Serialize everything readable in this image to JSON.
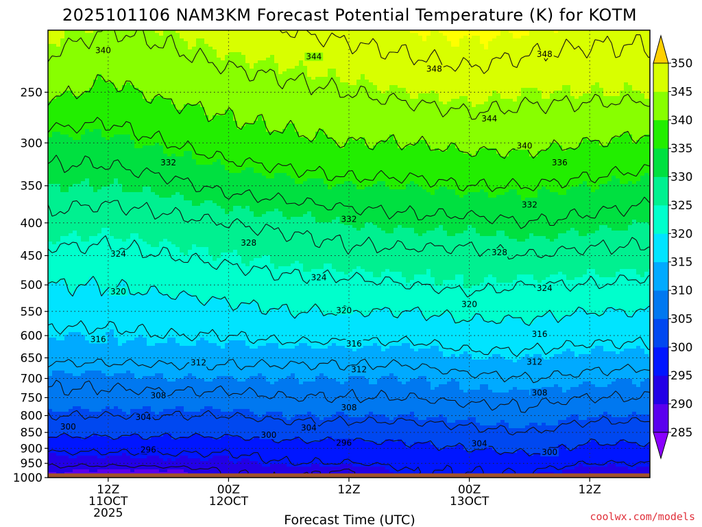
{
  "chart_data": {
    "type": "heatmap",
    "title": "2025101106 NAM3KM Forecast Potential Temperature (K) for KOTM",
    "xlabel": "Forecast Time (UTC)",
    "ylabel": "",
    "y_ticks": [
      "250",
      "300",
      "350",
      "400",
      "450",
      "500",
      "550",
      "600",
      "650",
      "700",
      "750",
      "800",
      "850",
      "900",
      "950",
      "1000"
    ],
    "y_values": [
      250,
      300,
      350,
      400,
      450,
      500,
      550,
      600,
      650,
      700,
      750,
      800,
      850,
      900,
      950,
      1000
    ],
    "ylim": [
      200,
      1000
    ],
    "y_scale": "log-pressure",
    "x_ticks": [
      {
        "hour": 6,
        "line1": "12Z",
        "line2": "11OCT",
        "line3": "2025"
      },
      {
        "hour": 18,
        "line1": "00Z",
        "line2": "12OCT",
        "line3": ""
      },
      {
        "hour": 30,
        "line1": "12Z",
        "line2": "",
        "line3": ""
      },
      {
        "hour": 42,
        "line1": "00Z",
        "line2": "13OCT",
        "line3": ""
      },
      {
        "hour": 54,
        "line1": "12Z",
        "line2": "",
        "line3": ""
      }
    ],
    "xlim": [
      0,
      60
    ],
    "colorbar": {
      "levels": [
        285,
        290,
        295,
        300,
        305,
        310,
        315,
        320,
        325,
        330,
        335,
        340,
        345,
        350
      ],
      "labels": [
        "285",
        "290",
        "295",
        "300",
        "305",
        "310",
        "315",
        "320",
        "325",
        "330",
        "335",
        "340",
        "345",
        "350"
      ],
      "colors": [
        "#8a00ff",
        "#5a00ee",
        "#2200e6",
        "#0016ff",
        "#0048f0",
        "#0078f0",
        "#00aaff",
        "#00e4ff",
        "#00ffcc",
        "#00f090",
        "#00e040",
        "#22ee00",
        "#88ff00",
        "#d8ff00",
        "#ffff00",
        "#ffd000"
      ],
      "extend": "both"
    },
    "potential_temperature_columns": [
      {
        "hour": 0,
        "levels": [
          [
            200,
            346
          ],
          [
            250,
            341
          ],
          [
            300,
            334
          ],
          [
            350,
            330
          ],
          [
            400,
            327
          ],
          [
            450,
            323
          ],
          [
            500,
            320
          ],
          [
            550,
            318
          ],
          [
            600,
            315
          ],
          [
            650,
            313
          ],
          [
            700,
            309
          ],
          [
            750,
            307
          ],
          [
            800,
            304
          ],
          [
            850,
            301
          ],
          [
            900,
            297
          ],
          [
            950,
            293
          ],
          [
            980,
            290
          ]
        ]
      },
      {
        "hour": 6,
        "levels": [
          [
            200,
            344
          ],
          [
            250,
            339
          ],
          [
            300,
            334
          ],
          [
            350,
            330
          ],
          [
            400,
            326
          ],
          [
            450,
            323
          ],
          [
            500,
            320
          ],
          [
            550,
            318
          ],
          [
            600,
            315
          ],
          [
            650,
            313
          ],
          [
            700,
            309
          ],
          [
            750,
            307
          ],
          [
            800,
            304
          ],
          [
            850,
            301
          ],
          [
            900,
            297
          ],
          [
            950,
            293
          ],
          [
            980,
            289
          ]
        ]
      },
      {
        "hour": 12,
        "levels": [
          [
            200,
            345
          ],
          [
            250,
            341
          ],
          [
            300,
            336
          ],
          [
            350,
            331
          ],
          [
            400,
            327
          ],
          [
            450,
            324
          ],
          [
            500,
            321
          ],
          [
            550,
            318
          ],
          [
            600,
            316
          ],
          [
            650,
            313
          ],
          [
            700,
            310
          ],
          [
            750,
            307
          ],
          [
            800,
            304
          ],
          [
            850,
            301
          ],
          [
            900,
            297
          ],
          [
            950,
            294
          ],
          [
            980,
            289
          ]
        ]
      },
      {
        "hour": 18,
        "levels": [
          [
            200,
            347
          ],
          [
            250,
            342
          ],
          [
            300,
            338
          ],
          [
            350,
            333
          ],
          [
            400,
            328
          ],
          [
            450,
            325
          ],
          [
            500,
            322
          ],
          [
            550,
            319
          ],
          [
            600,
            316
          ],
          [
            650,
            313
          ],
          [
            700,
            310
          ],
          [
            750,
            307
          ],
          [
            800,
            304
          ],
          [
            850,
            301
          ],
          [
            900,
            297
          ],
          [
            950,
            294
          ],
          [
            980,
            292
          ]
        ]
      },
      {
        "hour": 24,
        "levels": [
          [
            200,
            348
          ],
          [
            250,
            343
          ],
          [
            300,
            339
          ],
          [
            350,
            334
          ],
          [
            400,
            329
          ],
          [
            450,
            326
          ],
          [
            500,
            323
          ],
          [
            550,
            320
          ],
          [
            600,
            317
          ],
          [
            650,
            313
          ],
          [
            700,
            310
          ],
          [
            750,
            308
          ],
          [
            800,
            305
          ],
          [
            850,
            302
          ],
          [
            900,
            298
          ],
          [
            950,
            296
          ],
          [
            980,
            293
          ]
        ]
      },
      {
        "hour": 30,
        "levels": [
          [
            200,
            349
          ],
          [
            250,
            344
          ],
          [
            300,
            340
          ],
          [
            350,
            335
          ],
          [
            400,
            330
          ],
          [
            450,
            327
          ],
          [
            500,
            323
          ],
          [
            550,
            320
          ],
          [
            600,
            317
          ],
          [
            650,
            313
          ],
          [
            700,
            310
          ],
          [
            750,
            308
          ],
          [
            800,
            305
          ],
          [
            850,
            302
          ],
          [
            900,
            298
          ],
          [
            950,
            296
          ],
          [
            980,
            291
          ]
        ]
      },
      {
        "hour": 36,
        "levels": [
          [
            200,
            350
          ],
          [
            250,
            345
          ],
          [
            300,
            340
          ],
          [
            350,
            335
          ],
          [
            400,
            331
          ],
          [
            450,
            327
          ],
          [
            500,
            324
          ],
          [
            550,
            320
          ],
          [
            600,
            317
          ],
          [
            650,
            313
          ],
          [
            700,
            310
          ],
          [
            750,
            308
          ],
          [
            800,
            305
          ],
          [
            850,
            302
          ],
          [
            900,
            299
          ],
          [
            950,
            297
          ],
          [
            980,
            296
          ]
        ]
      },
      {
        "hour": 42,
        "levels": [
          [
            200,
            351
          ],
          [
            250,
            346
          ],
          [
            300,
            341
          ],
          [
            350,
            336
          ],
          [
            400,
            331
          ],
          [
            450,
            327
          ],
          [
            500,
            325
          ],
          [
            550,
            321
          ],
          [
            600,
            318
          ],
          [
            650,
            315
          ],
          [
            700,
            311
          ],
          [
            750,
            309
          ],
          [
            800,
            306
          ],
          [
            850,
            303
          ],
          [
            900,
            300
          ],
          [
            950,
            297
          ],
          [
            980,
            296
          ]
        ]
      },
      {
        "hour": 48,
        "levels": [
          [
            200,
            350
          ],
          [
            250,
            345
          ],
          [
            300,
            341
          ],
          [
            350,
            336
          ],
          [
            400,
            332
          ],
          [
            450,
            328
          ],
          [
            500,
            324
          ],
          [
            550,
            321
          ],
          [
            600,
            318
          ],
          [
            650,
            315
          ],
          [
            700,
            312
          ],
          [
            750,
            309
          ],
          [
            800,
            307
          ],
          [
            850,
            304
          ],
          [
            900,
            301
          ],
          [
            950,
            298
          ],
          [
            980,
            296
          ]
        ]
      },
      {
        "hour": 54,
        "levels": [
          [
            200,
            349
          ],
          [
            250,
            345
          ],
          [
            300,
            340
          ],
          [
            350,
            335
          ],
          [
            400,
            331
          ],
          [
            450,
            327
          ],
          [
            500,
            324
          ],
          [
            550,
            320
          ],
          [
            600,
            317
          ],
          [
            650,
            314
          ],
          [
            700,
            311
          ],
          [
            750,
            308
          ],
          [
            800,
            305
          ],
          [
            850,
            302
          ],
          [
            900,
            299
          ],
          [
            950,
            296
          ],
          [
            980,
            293
          ]
        ]
      },
      {
        "hour": 60,
        "levels": [
          [
            200,
            349
          ],
          [
            250,
            345
          ],
          [
            300,
            339
          ],
          [
            350,
            334
          ],
          [
            400,
            330
          ],
          [
            450,
            327
          ],
          [
            500,
            323
          ],
          [
            550,
            320
          ],
          [
            600,
            317
          ],
          [
            650,
            314
          ],
          [
            700,
            310
          ],
          [
            750,
            308
          ],
          [
            800,
            305
          ],
          [
            850,
            302
          ],
          [
            900,
            299
          ],
          [
            950,
            296
          ],
          [
            980,
            294
          ]
        ]
      }
    ],
    "contour_interval": 4,
    "contour_labels": [
      {
        "value": "340",
        "hour": 5.5,
        "p": 215
      },
      {
        "value": "344",
        "hour": 26.5,
        "p": 220
      },
      {
        "value": "348",
        "hour": 38.5,
        "p": 230
      },
      {
        "value": "348",
        "hour": 49.5,
        "p": 218
      },
      {
        "value": "344",
        "hour": 44,
        "p": 275
      },
      {
        "value": "340",
        "hour": 47.5,
        "p": 303
      },
      {
        "value": "336",
        "hour": 51,
        "p": 322
      },
      {
        "value": "332",
        "hour": 12,
        "p": 322
      },
      {
        "value": "332",
        "hour": 48,
        "p": 375
      },
      {
        "value": "332",
        "hour": 30,
        "p": 395
      },
      {
        "value": "328",
        "hour": 20,
        "p": 430
      },
      {
        "value": "328",
        "hour": 45,
        "p": 445
      },
      {
        "value": "324",
        "hour": 7,
        "p": 447
      },
      {
        "value": "324",
        "hour": 27,
        "p": 487
      },
      {
        "value": "324",
        "hour": 49.5,
        "p": 506
      },
      {
        "value": "320",
        "hour": 7,
        "p": 512
      },
      {
        "value": "320",
        "hour": 42,
        "p": 536
      },
      {
        "value": "320",
        "hour": 29.5,
        "p": 548
      },
      {
        "value": "316",
        "hour": 49,
        "p": 597
      },
      {
        "value": "316",
        "hour": 5,
        "p": 608
      },
      {
        "value": "316",
        "hour": 30.5,
        "p": 618
      },
      {
        "value": "312",
        "hour": 15,
        "p": 661
      },
      {
        "value": "312",
        "hour": 48.5,
        "p": 660
      },
      {
        "value": "312",
        "hour": 31,
        "p": 678
      },
      {
        "value": "308",
        "hour": 49,
        "p": 737
      },
      {
        "value": "308",
        "hour": 11,
        "p": 745
      },
      {
        "value": "308",
        "hour": 30,
        "p": 777
      },
      {
        "value": "304",
        "hour": 9.5,
        "p": 805
      },
      {
        "value": "300",
        "hour": 2,
        "p": 833
      },
      {
        "value": "304",
        "hour": 26,
        "p": 836
      },
      {
        "value": "300",
        "hour": 22,
        "p": 858
      },
      {
        "value": "296",
        "hour": 29.5,
        "p": 883
      },
      {
        "value": "304",
        "hour": 43,
        "p": 885
      },
      {
        "value": "296",
        "hour": 10,
        "p": 905
      },
      {
        "value": "300",
        "hour": 50,
        "p": 913
      }
    ],
    "surface_pressure": 985
  },
  "credit": "coolwx.com/models"
}
